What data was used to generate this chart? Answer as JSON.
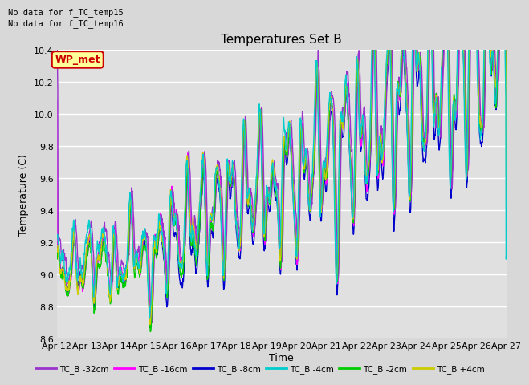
{
  "title": "Temperatures Set B",
  "xlabel": "Time",
  "ylabel": "Temperature (C)",
  "ylim": [
    8.6,
    10.4
  ],
  "yticks": [
    8.6,
    8.8,
    9.0,
    9.2,
    9.4,
    9.6,
    9.8,
    10.0,
    10.2,
    10.4
  ],
  "x_labels": [
    "Apr 12",
    "Apr 13",
    "Apr 14",
    "Apr 15",
    "Apr 16",
    "Apr 17",
    "Apr 18",
    "Apr 19",
    "Apr 20",
    "Apr 21",
    "Apr 22",
    "Apr 23",
    "Apr 24",
    "Apr 25",
    "Apr 26",
    "Apr 27"
  ],
  "no_data_text": [
    "No data for f_TC_temp15",
    "No data for f_TC_temp16"
  ],
  "wp_met_label": "WP_met",
  "wp_met_color": "#cc0000",
  "wp_met_bg": "#ffff99",
  "series": [
    {
      "label": "TC_B -32cm",
      "color": "#9933cc",
      "lw": 1.0
    },
    {
      "label": "TC_B -16cm",
      "color": "#ff00ff",
      "lw": 1.0
    },
    {
      "label": "TC_B -8cm",
      "color": "#0000cc",
      "lw": 1.0
    },
    {
      "label": "TC_B -4cm",
      "color": "#00cccc",
      "lw": 1.0
    },
    {
      "label": "TC_B -2cm",
      "color": "#00cc00",
      "lw": 1.0
    },
    {
      "label": "TC_B +4cm",
      "color": "#cccc00",
      "lw": 1.0
    }
  ],
  "fig_bg_color": "#d8d8d8",
  "plot_bg": "#e0e0e0",
  "grid_color": "#ffffff",
  "n_points": 1440,
  "days": 15
}
